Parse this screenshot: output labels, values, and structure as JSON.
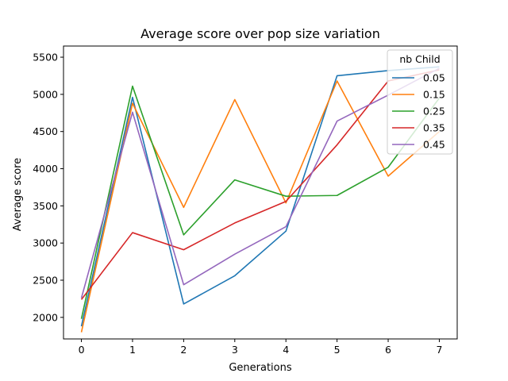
{
  "chart_data": {
    "type": "line",
    "title": "Average score over pop size variation",
    "xlabel": "Generations",
    "ylabel": "Average score",
    "x": [
      0,
      1,
      2,
      3,
      4,
      5,
      6,
      7
    ],
    "xlim": [
      -0.35,
      7.35
    ],
    "ylim": [
      1710,
      5650
    ],
    "xticks": [
      0,
      1,
      2,
      3,
      4,
      5,
      6,
      7
    ],
    "yticks": [
      2000,
      2500,
      3000,
      3500,
      4000,
      4500,
      5000,
      5500
    ],
    "grid": false,
    "legend": {
      "title": "nb Child",
      "position": "top-right"
    },
    "series": [
      {
        "name": "0.05",
        "color": "#1f77b4",
        "values": [
          1880,
          4960,
          2180,
          2560,
          3160,
          5250,
          5320,
          5370
        ]
      },
      {
        "name": "0.15",
        "color": "#ff7f0e",
        "values": [
          1800,
          4880,
          3480,
          4930,
          3540,
          5180,
          3900,
          4500
        ]
      },
      {
        "name": "0.25",
        "color": "#2ca02c",
        "values": [
          1980,
          5110,
          3110,
          3850,
          3630,
          3640,
          4020,
          4950
        ]
      },
      {
        "name": "0.35",
        "color": "#d62728",
        "values": [
          2240,
          3140,
          2910,
          3270,
          3560,
          4320,
          5180,
          5330
        ]
      },
      {
        "name": "0.45",
        "color": "#9467bd",
        "values": [
          2260,
          4760,
          2440,
          2850,
          3220,
          4640,
          4990,
          5350
        ]
      }
    ]
  }
}
